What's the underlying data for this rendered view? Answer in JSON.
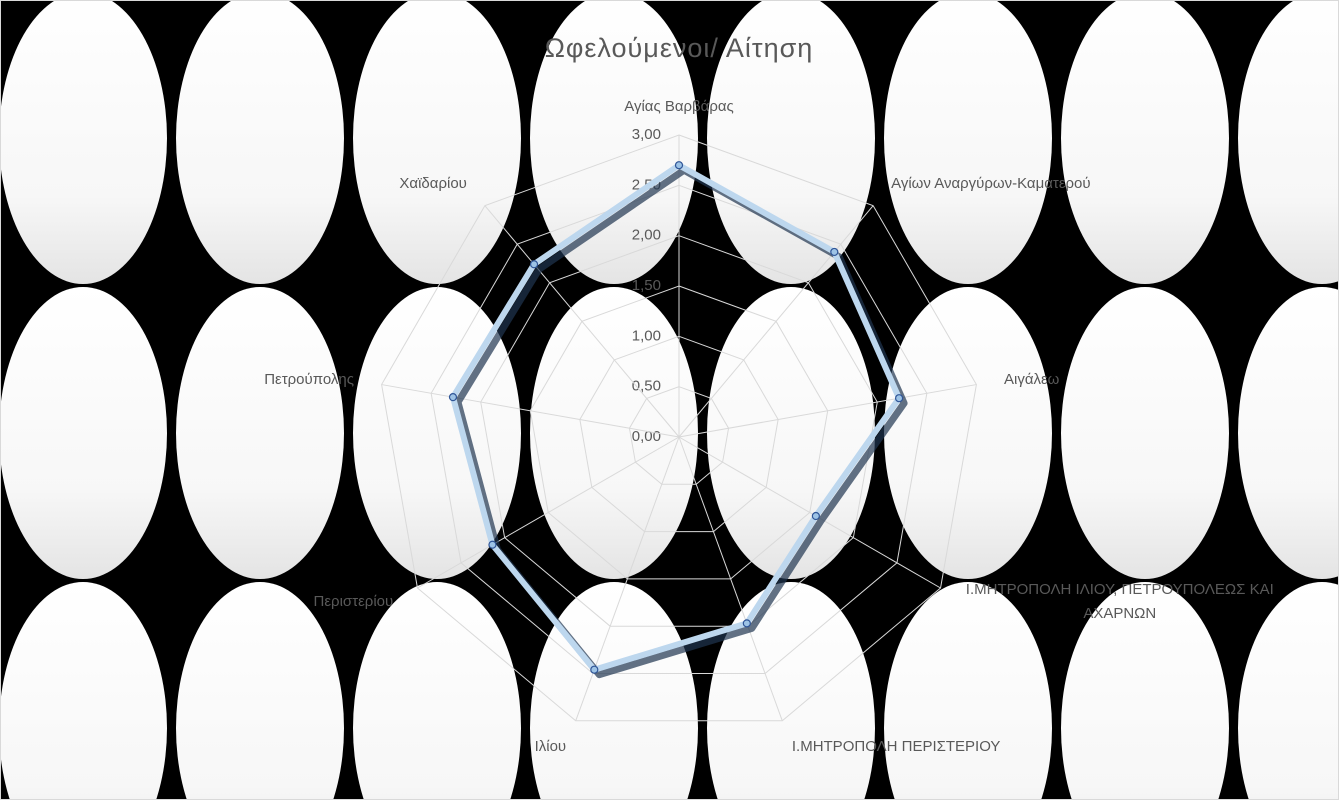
{
  "chart_data": {
    "type": "radar",
    "title": "Ωφελούμενοι/ Αίτηση",
    "categories": [
      "Αγίας Βαρβάρας",
      "Αγίων Αναργύρων-Καματερού",
      "Αιγάλεω",
      "Ι.ΜΗΤΡΟΠΟΛΗ ΙΛΙΟΥ, ΠΕΤΡΟΥΠΟΛΕΩΣ ΚΑΙ ΑΧΑΡΝΩΝ",
      "Ι.ΜΗΤΡΟΠΟΛΗ ΠΕΡΙΣΤΕΡΙΟΥ",
      "Ιλίου",
      "Περιστερίου",
      "Πετρούπολης",
      "Χαϊδαρίου"
    ],
    "values": [
      2.7,
      2.4,
      2.22,
      1.57,
      1.97,
      2.46,
      2.14,
      2.28,
      2.24
    ],
    "color": "#bdd7ee",
    "ylim": [
      0,
      3
    ],
    "yticks": [
      {
        "value": 0,
        "label": "0,00"
      },
      {
        "value": 0.5,
        "label": "0,50"
      },
      {
        "value": 1,
        "label": "1,00"
      },
      {
        "value": 1.5,
        "label": "1,50"
      },
      {
        "value": 2,
        "label": "2,00"
      },
      {
        "value": 2.5,
        "label": "2,50"
      },
      {
        "value": 3,
        "label": "3,00"
      }
    ],
    "grid": true
  }
}
